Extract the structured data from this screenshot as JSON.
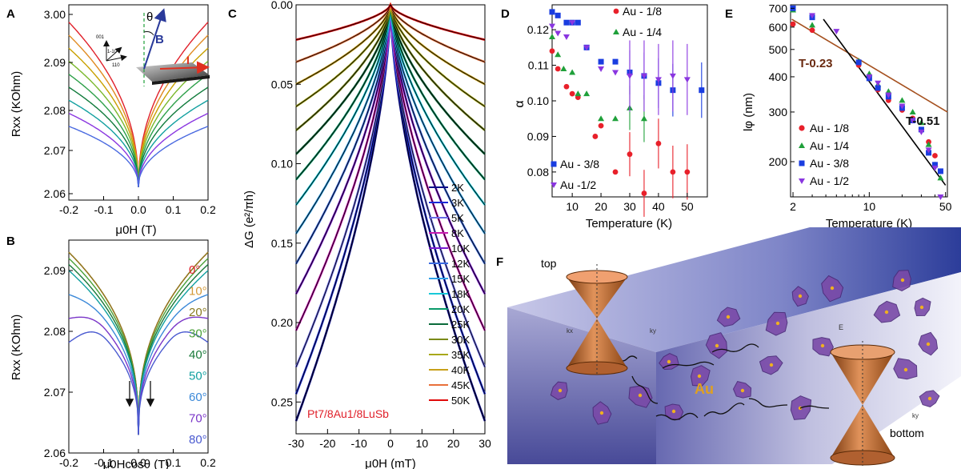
{
  "panels": {
    "A": {
      "letter": "A",
      "xlabel": "μ0H (T)",
      "ylabel": "Rxx (KOhm)",
      "xticks": [
        "-0.2",
        "-0.1",
        "0.0",
        "0.1",
        "0.2"
      ],
      "yticks": [
        "3.00",
        "2.09",
        "2.08",
        "2.07",
        "2.06"
      ],
      "inset": {
        "axis1": "001",
        "axis2": "1-10",
        "axis3": "110",
        "theta": "θ",
        "field": "B",
        "current": "I"
      }
    },
    "B": {
      "letter": "B",
      "xlabel": "μ0Hcosθ (T)",
      "ylabel": "Rxx (KOhm)",
      "xticks": [
        "-0.2",
        "-0.1",
        "0.0",
        "0.1",
        "0.2"
      ],
      "yticks": [
        "2.09",
        "2.08",
        "2.07",
        "2.06"
      ],
      "legend": [
        "0°",
        "10°",
        "20°",
        "30°",
        "40°",
        "50°",
        "60°",
        "70°",
        "80°"
      ]
    },
    "C": {
      "letter": "C",
      "xlabel": "μ0H (mT)",
      "ylabel": "ΔG (e²/πh)",
      "xticks": [
        "-30",
        "-20",
        "-10",
        "0",
        "10",
        "20",
        "30"
      ],
      "yticks": [
        "0.00",
        "0.05",
        "0.10",
        "0.15",
        "0.20",
        "0.25"
      ],
      "sample": "Pt7/8Au1/8LuSb",
      "legend": [
        "2K",
        "3K",
        "5K",
        "8K",
        "10K",
        "12K",
        "15K",
        "18K",
        "20K",
        "25K",
        "30K",
        "35K",
        "40K",
        "45K",
        "50K"
      ]
    },
    "D": {
      "letter": "D",
      "xlabel": "Temperature (K)",
      "ylabel": "α",
      "xticks": [
        "10",
        "20",
        "30",
        "40",
        "50"
      ],
      "yticks": [
        "0.12",
        "0.11",
        "0.10",
        "0.09",
        "0.08"
      ],
      "legend": [
        "Au - 1/8",
        "Au - 1/4",
        "Au - 3/8",
        "Au -1/2"
      ]
    },
    "E": {
      "letter": "E",
      "xlabel": "Temperature (K)",
      "ylabel": "lφ (nm)",
      "xticks": [
        "2",
        "10",
        "50"
      ],
      "yticks": [
        "700",
        "600",
        "500",
        "400",
        "300",
        "200"
      ],
      "legend": [
        "Au - 1/8",
        "Au - 1/4",
        "Au - 3/8",
        "Au - 1/2"
      ],
      "fit1": "T-0.23",
      "fit2": "T-0.51"
    },
    "F": {
      "letter": "F",
      "top": "top",
      "bottom": "bottom",
      "dopant": "Au",
      "kx": "kx",
      "ky": "ky",
      "E": "E"
    }
  },
  "colors": {
    "sample": "#e0202a",
    "au18": "#e8202a",
    "au14": "#1fa03a",
    "au38": "#1a3de0",
    "au12": "#8a36e0",
    "fit1": "#a5501e",
    "fit2": "#000000"
  },
  "chart_data": [
    {
      "type": "line",
      "panel": "A",
      "xlabel": "μ0H (T)",
      "ylabel": "Rxx (KOhm)",
      "xlim": [
        -0.2,
        0.2
      ],
      "ylim": [
        2.06,
        2.1
      ],
      "series_count": 9
    },
    {
      "type": "line",
      "panel": "B",
      "xlabel": "μ0Hcosθ (T)",
      "ylabel": "Rxx (KOhm)",
      "xlim": [
        -0.2,
        0.2
      ],
      "ylim": [
        2.06,
        2.095
      ],
      "series": [
        {
          "name": "0°"
        },
        {
          "name": "10°"
        },
        {
          "name": "20°"
        },
        {
          "name": "30°"
        },
        {
          "name": "40°"
        },
        {
          "name": "50°"
        },
        {
          "name": "60°"
        },
        {
          "name": "70°"
        },
        {
          "name": "80°"
        }
      ]
    },
    {
      "type": "line",
      "panel": "C",
      "xlabel": "μ0H (mT)",
      "ylabel": "ΔG (e²/πh)",
      "xlim": [
        -30,
        30
      ],
      "ylim": [
        0.0,
        0.27
      ],
      "series": [
        {
          "name": "2K",
          "edge": 0.262
        },
        {
          "name": "3K",
          "edge": 0.245
        },
        {
          "name": "5K",
          "edge": 0.228
        },
        {
          "name": "8K",
          "edge": 0.205
        },
        {
          "name": "10K",
          "edge": 0.182
        },
        {
          "name": "12K",
          "edge": 0.163
        },
        {
          "name": "15K",
          "edge": 0.144
        },
        {
          "name": "18K",
          "edge": 0.126
        },
        {
          "name": "20K",
          "edge": 0.11
        },
        {
          "name": "25K",
          "edge": 0.094
        },
        {
          "name": "30K",
          "edge": 0.079
        },
        {
          "name": "35K",
          "edge": 0.064
        },
        {
          "name": "40K",
          "edge": 0.05
        },
        {
          "name": "45K",
          "edge": 0.036
        },
        {
          "name": "50K",
          "edge": 0.022
        }
      ]
    },
    {
      "type": "scatter",
      "panel": "D",
      "xlabel": "Temperature (K)",
      "ylabel": "α",
      "xlim": [
        3,
        57
      ],
      "ylim": [
        0.073,
        0.127
      ],
      "series": [
        {
          "name": "Au - 1/8",
          "x": [
            3,
            5,
            8,
            10,
            12,
            18,
            20,
            25,
            30,
            35,
            40,
            45,
            50
          ],
          "y": [
            0.114,
            0.109,
            0.104,
            0.102,
            0.101,
            0.09,
            0.093,
            0.08,
            0.085,
            0.074,
            0.088,
            0.08,
            0.08
          ]
        },
        {
          "name": "Au - 1/4",
          "x": [
            3,
            5,
            7,
            10,
            12,
            15,
            20,
            25,
            30,
            35
          ],
          "y": [
            0.118,
            0.113,
            0.109,
            0.108,
            0.102,
            0.102,
            0.095,
            0.095,
            0.098,
            0.095
          ]
        },
        {
          "name": "Au - 3/8",
          "x": [
            3,
            5,
            8,
            10,
            12,
            15,
            20,
            25,
            30,
            35,
            40,
            45,
            55
          ],
          "y": [
            0.125,
            0.124,
            0.122,
            0.122,
            0.122,
            0.115,
            0.111,
            0.111,
            0.108,
            0.107,
            0.105,
            0.103,
            0.103
          ]
        },
        {
          "name": "Au -1/2",
          "x": [
            3,
            5,
            8,
            10,
            15,
            20,
            25,
            30,
            35,
            40,
            45,
            50
          ],
          "y": [
            0.121,
            0.119,
            0.118,
            0.122,
            0.115,
            0.109,
            0.108,
            0.107,
            0.107,
            0.106,
            0.107,
            0.106
          ]
        }
      ]
    },
    {
      "type": "scatter",
      "panel": "E",
      "xlabel": "Temperature (K)",
      "ylabel": "lφ (nm)",
      "xscale": "log",
      "yscale": "log",
      "xlim": [
        2,
        50
      ],
      "ylim": [
        150,
        720
      ],
      "series": [
        {
          "name": "Au - 1/8",
          "x": [
            2,
            3,
            8,
            10,
            12,
            15,
            20,
            25,
            30,
            35,
            40,
            45
          ],
          "y": [
            615,
            585,
            440,
            395,
            360,
            330,
            305,
            285,
            260,
            235,
            210,
            185
          ]
        },
        {
          "name": "Au - 1/4",
          "x": [
            2,
            3,
            8,
            10,
            12,
            15,
            20,
            25,
            30,
            35,
            40,
            45
          ],
          "y": [
            690,
            610,
            455,
            410,
            375,
            355,
            330,
            300,
            275,
            230,
            195,
            175
          ]
        },
        {
          "name": "Au - 3/8",
          "x": [
            2,
            3,
            8,
            10,
            12,
            15,
            20,
            25,
            30,
            35,
            40,
            45
          ],
          "y": [
            700,
            650,
            450,
            395,
            365,
            340,
            310,
            280,
            260,
            215,
            195,
            185
          ]
        },
        {
          "name": "Au - 1/2",
          "x": [
            3,
            5,
            10,
            12,
            15,
            20,
            25,
            30,
            35,
            40,
            45
          ],
          "y": [
            660,
            580,
            400,
            380,
            345,
            315,
            280,
            255,
            220,
            190,
            150
          ]
        }
      ]
    }
  ]
}
